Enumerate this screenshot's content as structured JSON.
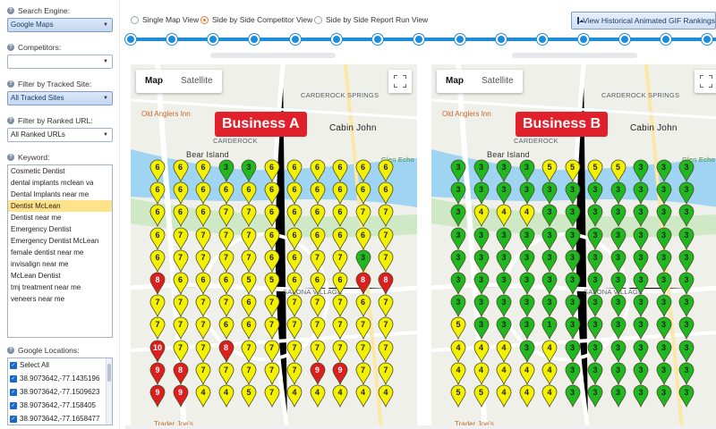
{
  "sidebar": {
    "search_engine": {
      "label": "Search Engine:",
      "value": "Google Maps"
    },
    "competitors": {
      "label": "Competitors:",
      "value": ""
    },
    "tracked_site": {
      "label": "Filter by Tracked Site:",
      "value": "All Tracked Sites"
    },
    "ranked_url": {
      "label": "Filter by Ranked URL:",
      "value": "All Ranked URLs"
    },
    "keyword": {
      "label": "Keyword:",
      "selected_index": 3,
      "items": [
        "Cosmetic Dentist",
        "dental implants mclean va",
        "Dental Implants near me",
        "Dentist McLean",
        "Dentist near me",
        "Emergency Dentist",
        "Emergency Dentist McLean",
        "female dentist near me",
        "invisalign near me",
        "McLean Dentist",
        "tmj treatment near me",
        "veneers near me"
      ]
    },
    "locations": {
      "label": "Google Locations:",
      "items": [
        "Select All",
        "38.9073642,-77.1435196",
        "38.9073642,-77.1509623",
        "38.9073642,-77.158405",
        "38.9073642,-77.1658477"
      ]
    }
  },
  "view_options": {
    "items": [
      "Single Map View",
      "Side by Side Competitor View",
      "Side by Side Report Run View"
    ],
    "selected_index": 1
  },
  "gif_button": "View Historical Animated GIF Rankings",
  "timeline": {
    "points": 15
  },
  "map_toggle": {
    "map": "Map",
    "satellite": "Satellite"
  },
  "map_places": {
    "carderock_springs": "CARDEROCK SPRINGS",
    "old_anglers_inn": "Old Anglers Inn",
    "carderock": "CARDEROCK",
    "cabin_john": "Cabin John",
    "bear_island": "Bear Island",
    "glen_echo": "Glen Echo",
    "salona_village": "SALONA VILLAGE",
    "trader_joes": "Trader Joe's"
  },
  "colors": {
    "green": "#1fb81f",
    "yellow": "#f3f000",
    "red": "#de1d1d",
    "accent_blue": "#1e8cd9",
    "label_red": "#e0202a"
  },
  "maps": [
    {
      "business": "Business A",
      "grid": [
        [
          6,
          6,
          6,
          3,
          3,
          6,
          6,
          6,
          6,
          6,
          6
        ],
        [
          6,
          6,
          6,
          6,
          6,
          6,
          6,
          6,
          6,
          6,
          6
        ],
        [
          6,
          6,
          6,
          7,
          7,
          6,
          6,
          6,
          6,
          7,
          7
        ],
        [
          6,
          7,
          7,
          7,
          7,
          6,
          6,
          6,
          6,
          6,
          7
        ],
        [
          6,
          7,
          7,
          7,
          7,
          6,
          6,
          7,
          7,
          3,
          7
        ],
        [
          8,
          6,
          6,
          6,
          5,
          5,
          6,
          6,
          6,
          8,
          8
        ],
        [
          7,
          7,
          7,
          7,
          6,
          7,
          7,
          7,
          7,
          6,
          7
        ],
        [
          7,
          7,
          7,
          6,
          6,
          7,
          7,
          7,
          7,
          7,
          7
        ],
        [
          10,
          7,
          7,
          8,
          7,
          7,
          7,
          7,
          7,
          7,
          7
        ],
        [
          9,
          8,
          7,
          7,
          7,
          7,
          7,
          9,
          9,
          7,
          7
        ],
        [
          9,
          9,
          4,
          4,
          5,
          7,
          4,
          4,
          4,
          4,
          4
        ]
      ]
    },
    {
      "business": "Business B",
      "grid": [
        [
          3,
          3,
          3,
          3,
          5,
          5,
          5,
          5,
          3,
          3,
          3
        ],
        [
          3,
          3,
          3,
          3,
          3,
          3,
          3,
          3,
          3,
          3,
          3
        ],
        [
          3,
          4,
          4,
          4,
          3,
          3,
          3,
          3,
          3,
          3,
          3
        ],
        [
          3,
          3,
          3,
          3,
          3,
          3,
          3,
          3,
          3,
          3,
          3
        ],
        [
          3,
          3,
          3,
          3,
          3,
          3,
          3,
          3,
          3,
          3,
          3
        ],
        [
          3,
          3,
          3,
          3,
          3,
          3,
          3,
          3,
          3,
          3,
          3
        ],
        [
          3,
          3,
          3,
          3,
          3,
          3,
          3,
          3,
          3,
          3,
          3
        ],
        [
          5,
          3,
          3,
          3,
          1,
          3,
          3,
          3,
          3,
          3,
          3
        ],
        [
          4,
          4,
          4,
          3,
          4,
          3,
          3,
          3,
          3,
          3,
          3
        ],
        [
          4,
          4,
          4,
          4,
          4,
          3,
          3,
          3,
          3,
          3,
          3
        ],
        [
          5,
          5,
          4,
          4,
          4,
          3,
          3,
          3,
          3,
          3,
          3
        ]
      ]
    }
  ]
}
